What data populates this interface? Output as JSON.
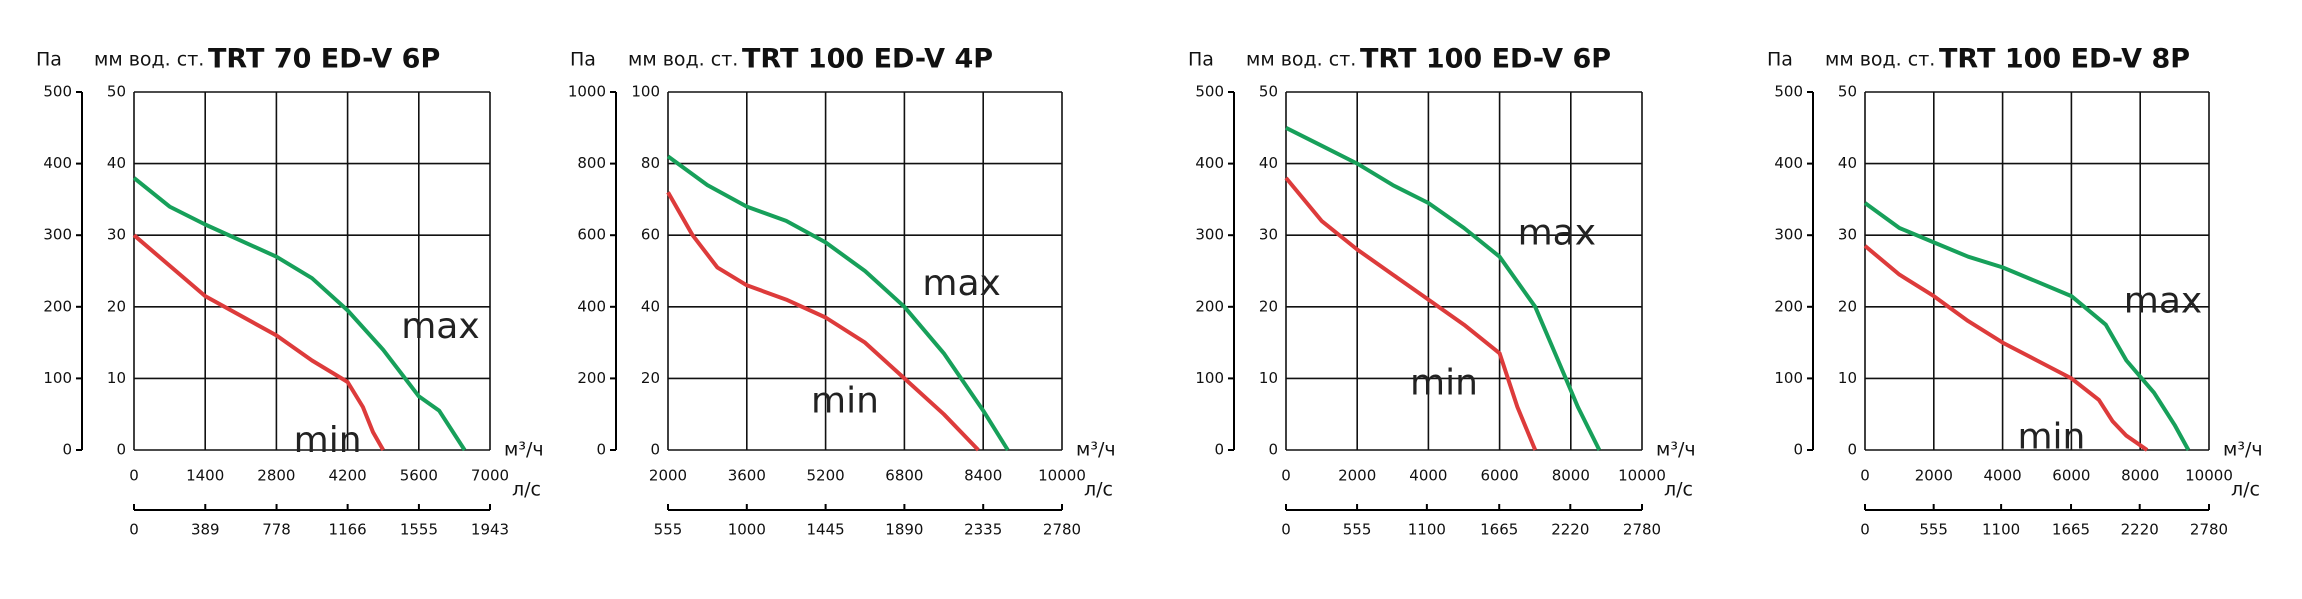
{
  "chart_data": [
    {
      "type": "line",
      "title": "TRT 70 ED-V 6P",
      "y_label": "Па",
      "y2_label": "мм вод. ст.",
      "x_label": "м³/ч",
      "x2_label": "л/с",
      "xlim": [
        0,
        7000
      ],
      "xticks": [
        0,
        1400,
        2800,
        4200,
        5600,
        7000
      ],
      "x2lim": [
        0,
        1943
      ],
      "x2ticks": [
        0,
        389,
        778,
        1166,
        1555,
        1943
      ],
      "ylim": [
        0,
        500
      ],
      "yticks": [
        0,
        100,
        200,
        300,
        400,
        500
      ],
      "y2lim": [
        0,
        50
      ],
      "y2ticks": [
        0,
        10,
        20,
        30,
        40,
        50
      ],
      "grid": true,
      "series": [
        {
          "name": "max",
          "color": "#17a05a",
          "x": [
            0,
            700,
            1400,
            2800,
            3500,
            4200,
            4900,
            5600,
            6000,
            6500
          ],
          "values": [
            380,
            340,
            315,
            270,
            240,
            195,
            140,
            75,
            55,
            0
          ]
        },
        {
          "name": "min",
          "color": "#dd3b3b",
          "x": [
            0,
            1400,
            2800,
            3500,
            4200,
            4500,
            4700,
            4900
          ],
          "values": [
            300,
            215,
            160,
            125,
            95,
            60,
            25,
            0
          ]
        }
      ]
    },
    {
      "type": "line",
      "title": "TRT 100 ED-V 4P",
      "y_label": "Па",
      "y2_label": "мм вод. ст.",
      "x_label": "м³/ч",
      "x2_label": "л/с",
      "xlim": [
        2000,
        10000
      ],
      "xticks": [
        2000,
        3600,
        5200,
        6800,
        8400,
        10000
      ],
      "x2lim": [
        555,
        2780
      ],
      "x2ticks": [
        555,
        1000,
        1445,
        1890,
        2335,
        2780
      ],
      "ylim": [
        0,
        1000
      ],
      "yticks": [
        0,
        200,
        400,
        600,
        800,
        1000
      ],
      "y2lim": [
        0,
        100
      ],
      "y2ticks": [
        0,
        20,
        40,
        60,
        80,
        100
      ],
      "grid": true,
      "series": [
        {
          "name": "max",
          "color": "#17a05a",
          "x": [
            2000,
            2800,
            3600,
            4400,
            5200,
            6000,
            6800,
            7600,
            8400,
            8900
          ],
          "values": [
            820,
            740,
            680,
            640,
            580,
            500,
            400,
            270,
            110,
            0
          ]
        },
        {
          "name": "min",
          "color": "#dd3b3b",
          "x": [
            2000,
            2500,
            3000,
            3600,
            4400,
            5200,
            6000,
            6800,
            7600,
            8300
          ],
          "values": [
            720,
            600,
            510,
            460,
            420,
            370,
            300,
            200,
            100,
            0
          ]
        }
      ]
    },
    {
      "type": "line",
      "title": "TRT 100 ED-V 6P",
      "y_label": "Па",
      "y2_label": "мм вод. ст.",
      "x_label": "м³/ч",
      "x2_label": "л/с",
      "xlim": [
        0,
        10000
      ],
      "xticks": [
        0,
        2000,
        4000,
        6000,
        8000,
        10000
      ],
      "x2lim": [
        0,
        2780
      ],
      "x2ticks": [
        0,
        555,
        1100,
        1665,
        2220,
        2780
      ],
      "ylim": [
        0,
        500
      ],
      "yticks": [
        0,
        100,
        200,
        300,
        400,
        500
      ],
      "y2lim": [
        0,
        50
      ],
      "y2ticks": [
        0,
        10,
        20,
        30,
        40,
        50
      ],
      "grid": true,
      "series": [
        {
          "name": "max",
          "color": "#17a05a",
          "x": [
            0,
            1000,
            2000,
            3000,
            4000,
            5000,
            6000,
            7000,
            7600,
            8200,
            8800
          ],
          "values": [
            450,
            425,
            400,
            370,
            345,
            310,
            270,
            200,
            130,
            60,
            0
          ]
        },
        {
          "name": "min",
          "color": "#dd3b3b",
          "x": [
            0,
            1000,
            2000,
            3000,
            4000,
            5000,
            6000,
            6500,
            7000
          ],
          "values": [
            380,
            320,
            280,
            245,
            210,
            175,
            135,
            60,
            0
          ]
        }
      ]
    },
    {
      "type": "line",
      "title": "TRT 100 ED-V 8P",
      "y_label": "Па",
      "y2_label": "мм вод. ст.",
      "x_label": "м³/ч",
      "x2_label": "л/с",
      "xlim": [
        0,
        10000
      ],
      "xticks": [
        0,
        2000,
        4000,
        6000,
        8000,
        10000
      ],
      "x2lim": [
        0,
        2780
      ],
      "x2ticks": [
        0,
        555,
        1100,
        1665,
        2220,
        2780
      ],
      "ylim": [
        0,
        500
      ],
      "yticks": [
        0,
        100,
        200,
        300,
        400,
        500
      ],
      "y2lim": [
        0,
        50
      ],
      "y2ticks": [
        0,
        10,
        20,
        30,
        40,
        50
      ],
      "grid": true,
      "series": [
        {
          "name": "max",
          "color": "#17a05a",
          "x": [
            0,
            1000,
            2000,
            3000,
            4000,
            5000,
            6000,
            7000,
            7600,
            8400,
            9000,
            9400
          ],
          "values": [
            345,
            310,
            290,
            270,
            255,
            235,
            215,
            175,
            125,
            80,
            35,
            0
          ]
        },
        {
          "name": "min",
          "color": "#dd3b3b",
          "x": [
            0,
            1000,
            2000,
            3000,
            4000,
            5000,
            6000,
            6800,
            7200,
            7600,
            8200
          ],
          "values": [
            285,
            245,
            215,
            180,
            150,
            125,
            100,
            70,
            40,
            20,
            0
          ]
        }
      ]
    }
  ]
}
